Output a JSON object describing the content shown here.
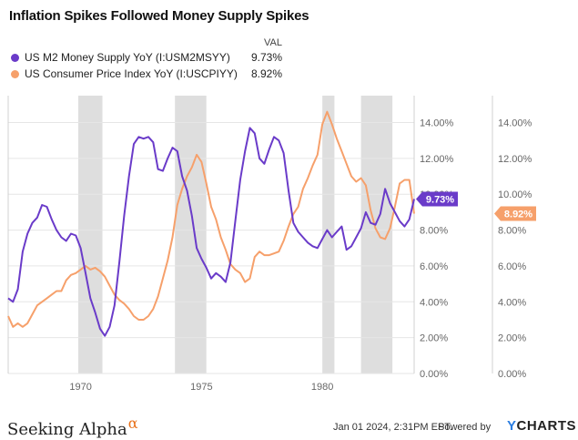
{
  "chart_data": {
    "type": "line",
    "title": "Inflation Spikes Followed Money Supply Spikes",
    "value_header": "VAL",
    "series": [
      {
        "name": "US M2 Money Supply YoY (I:USM2MSYY)",
        "color": "#6a3bc9",
        "last_value_label": "9.73%",
        "points": [
          [
            1967.0,
            4.2
          ],
          [
            1967.2,
            4.0
          ],
          [
            1967.4,
            4.7
          ],
          [
            1967.6,
            6.8
          ],
          [
            1967.8,
            7.8
          ],
          [
            1968.0,
            8.4
          ],
          [
            1968.2,
            8.7
          ],
          [
            1968.4,
            9.4
          ],
          [
            1968.6,
            9.3
          ],
          [
            1968.8,
            8.6
          ],
          [
            1969.0,
            8.0
          ],
          [
            1969.2,
            7.6
          ],
          [
            1969.4,
            7.4
          ],
          [
            1969.6,
            7.8
          ],
          [
            1969.8,
            7.7
          ],
          [
            1970.0,
            7.0
          ],
          [
            1970.2,
            5.6
          ],
          [
            1970.4,
            4.2
          ],
          [
            1970.6,
            3.4
          ],
          [
            1970.8,
            2.5
          ],
          [
            1971.0,
            2.1
          ],
          [
            1971.2,
            2.6
          ],
          [
            1971.4,
            3.8
          ],
          [
            1971.6,
            6.2
          ],
          [
            1971.8,
            8.8
          ],
          [
            1972.0,
            11.0
          ],
          [
            1972.2,
            12.8
          ],
          [
            1972.4,
            13.2
          ],
          [
            1972.6,
            13.1
          ],
          [
            1972.8,
            13.2
          ],
          [
            1973.0,
            12.9
          ],
          [
            1973.2,
            11.4
          ],
          [
            1973.4,
            11.3
          ],
          [
            1973.6,
            12.0
          ],
          [
            1973.8,
            12.6
          ],
          [
            1974.0,
            12.4
          ],
          [
            1974.2,
            11.0
          ],
          [
            1974.4,
            10.2
          ],
          [
            1974.6,
            8.8
          ],
          [
            1974.8,
            7.0
          ],
          [
            1975.0,
            6.4
          ],
          [
            1975.2,
            5.9
          ],
          [
            1975.4,
            5.3
          ],
          [
            1975.6,
            5.6
          ],
          [
            1975.8,
            5.4
          ],
          [
            1976.0,
            5.1
          ],
          [
            1976.2,
            6.2
          ],
          [
            1976.4,
            8.5
          ],
          [
            1976.6,
            10.8
          ],
          [
            1976.8,
            12.4
          ],
          [
            1977.0,
            13.7
          ],
          [
            1977.2,
            13.4
          ],
          [
            1977.4,
            12.0
          ],
          [
            1977.6,
            11.7
          ],
          [
            1977.8,
            12.5
          ],
          [
            1978.0,
            13.2
          ],
          [
            1978.2,
            13.0
          ],
          [
            1978.4,
            12.3
          ],
          [
            1978.6,
            10.2
          ],
          [
            1978.8,
            8.4
          ],
          [
            1979.0,
            7.9
          ],
          [
            1979.2,
            7.6
          ],
          [
            1979.4,
            7.3
          ],
          [
            1979.6,
            7.1
          ],
          [
            1979.8,
            7.0
          ],
          [
            1980.0,
            7.5
          ],
          [
            1980.2,
            8.0
          ],
          [
            1980.4,
            7.6
          ],
          [
            1980.6,
            7.9
          ],
          [
            1980.8,
            8.2
          ],
          [
            1981.0,
            6.9
          ],
          [
            1981.2,
            7.1
          ],
          [
            1981.4,
            7.6
          ],
          [
            1981.6,
            8.1
          ],
          [
            1981.8,
            9.0
          ],
          [
            1982.0,
            8.4
          ],
          [
            1982.2,
            8.3
          ],
          [
            1982.4,
            8.9
          ],
          [
            1982.6,
            10.3
          ],
          [
            1982.8,
            9.5
          ],
          [
            1983.0,
            9.0
          ],
          [
            1983.2,
            8.5
          ],
          [
            1983.4,
            8.2
          ],
          [
            1983.6,
            8.6
          ],
          [
            1983.8,
            9.73
          ]
        ]
      },
      {
        "name": "US Consumer Price Index YoY (I:USCPIYY)",
        "color": "#f6a06b",
        "last_value_label": "8.92%",
        "points": [
          [
            1967.0,
            3.2
          ],
          [
            1967.2,
            2.6
          ],
          [
            1967.4,
            2.8
          ],
          [
            1967.6,
            2.6
          ],
          [
            1967.8,
            2.8
          ],
          [
            1968.0,
            3.3
          ],
          [
            1968.2,
            3.8
          ],
          [
            1968.4,
            4.0
          ],
          [
            1968.6,
            4.2
          ],
          [
            1968.8,
            4.4
          ],
          [
            1969.0,
            4.6
          ],
          [
            1969.2,
            4.6
          ],
          [
            1969.4,
            5.2
          ],
          [
            1969.6,
            5.5
          ],
          [
            1969.8,
            5.6
          ],
          [
            1970.0,
            5.8
          ],
          [
            1970.2,
            6.0
          ],
          [
            1970.4,
            5.8
          ],
          [
            1970.6,
            5.9
          ],
          [
            1970.8,
            5.7
          ],
          [
            1971.0,
            5.4
          ],
          [
            1971.2,
            4.9
          ],
          [
            1971.4,
            4.4
          ],
          [
            1971.6,
            4.1
          ],
          [
            1971.8,
            3.9
          ],
          [
            1972.0,
            3.6
          ],
          [
            1972.2,
            3.2
          ],
          [
            1972.4,
            3.0
          ],
          [
            1972.6,
            3.0
          ],
          [
            1972.8,
            3.2
          ],
          [
            1973.0,
            3.6
          ],
          [
            1973.2,
            4.3
          ],
          [
            1973.4,
            5.3
          ],
          [
            1973.6,
            6.3
          ],
          [
            1973.8,
            7.6
          ],
          [
            1974.0,
            9.4
          ],
          [
            1974.2,
            10.3
          ],
          [
            1974.4,
            11.0
          ],
          [
            1974.6,
            11.5
          ],
          [
            1974.8,
            12.2
          ],
          [
            1975.0,
            11.8
          ],
          [
            1975.2,
            10.6
          ],
          [
            1975.4,
            9.3
          ],
          [
            1975.6,
            8.6
          ],
          [
            1975.8,
            7.6
          ],
          [
            1976.0,
            6.9
          ],
          [
            1976.2,
            6.1
          ],
          [
            1976.4,
            5.8
          ],
          [
            1976.6,
            5.6
          ],
          [
            1976.8,
            5.1
          ],
          [
            1977.0,
            5.3
          ],
          [
            1977.2,
            6.5
          ],
          [
            1977.4,
            6.8
          ],
          [
            1977.6,
            6.6
          ],
          [
            1977.8,
            6.6
          ],
          [
            1978.0,
            6.7
          ],
          [
            1978.2,
            6.8
          ],
          [
            1978.4,
            7.4
          ],
          [
            1978.6,
            8.2
          ],
          [
            1978.8,
            8.9
          ],
          [
            1979.0,
            9.3
          ],
          [
            1979.2,
            10.3
          ],
          [
            1979.4,
            10.9
          ],
          [
            1979.6,
            11.6
          ],
          [
            1979.8,
            12.2
          ],
          [
            1980.0,
            13.9
          ],
          [
            1980.2,
            14.6
          ],
          [
            1980.4,
            13.9
          ],
          [
            1980.6,
            13.1
          ],
          [
            1980.8,
            12.4
          ],
          [
            1981.0,
            11.7
          ],
          [
            1981.2,
            11.0
          ],
          [
            1981.4,
            10.7
          ],
          [
            1981.6,
            10.9
          ],
          [
            1981.8,
            10.5
          ],
          [
            1982.0,
            9.1
          ],
          [
            1982.2,
            8.1
          ],
          [
            1982.4,
            7.6
          ],
          [
            1982.6,
            7.5
          ],
          [
            1982.8,
            8.1
          ],
          [
            1983.0,
            9.3
          ],
          [
            1983.2,
            10.6
          ],
          [
            1983.4,
            10.8
          ],
          [
            1983.6,
            10.8
          ],
          [
            1983.8,
            8.92
          ]
        ]
      }
    ],
    "recessions": [
      [
        1969.9,
        1970.9
      ],
      [
        1973.9,
        1975.2
      ],
      [
        1980.0,
        1980.5
      ],
      [
        1981.6,
        1982.9
      ]
    ],
    "xlim": [
      1967.0,
      1983.8
    ],
    "ylim": [
      0,
      15.5
    ],
    "x_ticks": [
      1970,
      1975,
      1980
    ],
    "x_tick_labels": [
      "1970",
      "1975",
      "1980"
    ],
    "y_ticks": [
      0,
      2,
      4,
      6,
      8,
      10,
      12,
      14
    ],
    "y_tick_labels": [
      "0.00%",
      "2.00%",
      "4.00%",
      "6.00%",
      "8.00%",
      "10.00%",
      "12.00%",
      "14.00%"
    ],
    "grid": "horizontal",
    "legend_position": "top-left"
  },
  "footer": {
    "brand": "Seeking Alpha",
    "brand_symbol": "α",
    "date": "Jan 01 2024, 2:31PM EST.",
    "powered_by": "Powered by",
    "ycharts_y": "Y",
    "ycharts_rest": "CHARTS"
  }
}
